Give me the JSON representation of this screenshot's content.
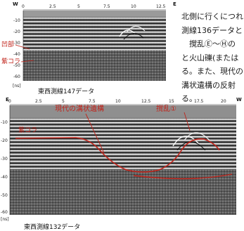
{
  "top_panel": {
    "dir_left": "W",
    "dir_right": "E",
    "x_ticks": [
      "0",
      "2.5",
      "5",
      "7.5",
      "10",
      "12.5"
    ],
    "y_ticks": [
      "-10",
      "-20",
      "-30",
      "-40",
      "-50",
      "-60"
    ],
    "unit": "[ns]",
    "label_dent": "凹部",
    "label_layer": "紫コラ",
    "caption": "東西測線147データ"
  },
  "bottom_panel": {
    "dir_left": "E",
    "dir_right": "W",
    "x_ticks": [
      "0",
      "2.5",
      "5",
      "7.5",
      "10",
      "12.5",
      "15",
      "17.5",
      "20"
    ],
    "y_ticks": [
      "-10",
      "-20",
      "-30",
      "-40",
      "-50",
      "-60"
    ],
    "unit": "[ns]",
    "label_layer": "紫コラ",
    "label_ditch": "現代の溝状遺構",
    "label_disturbance": "撹乱①",
    "caption": "東西測線132データ"
  },
  "text_lines": [
    "北側に行くにつれ",
    "測線136データと",
    "　撹乱Ⓔ～Ⓗの",
    "と火山礫(または",
    "る。また、現代の",
    "溝状遺構の反射",
    "る。"
  ]
}
